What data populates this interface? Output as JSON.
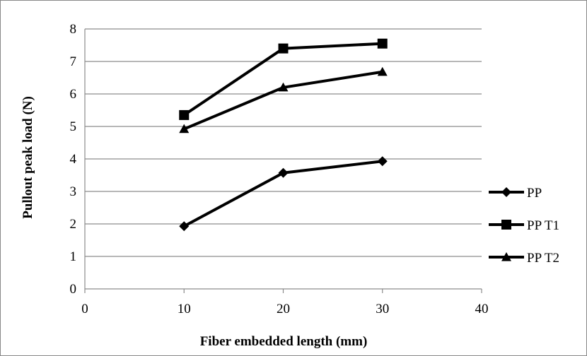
{
  "chart_data": {
    "type": "line",
    "title": "",
    "xlabel": "Fiber embedded length (mm)",
    "ylabel": "Pullout peak load (N)",
    "xlim": [
      0,
      40
    ],
    "ylim": [
      0,
      8
    ],
    "x_ticks": [
      "0",
      "10",
      "20",
      "30",
      "40"
    ],
    "y_ticks": [
      "0",
      "1",
      "2",
      "3",
      "4",
      "5",
      "6",
      "7",
      "8"
    ],
    "grid": "horizontal",
    "legend_position": "right",
    "series": [
      {
        "name": "PP",
        "marker": "diamond",
        "color": "#000000",
        "x": [
          10,
          20,
          30
        ],
        "y": [
          1.93,
          3.57,
          3.93
        ]
      },
      {
        "name": "PP T1",
        "marker": "square",
        "color": "#000000",
        "x": [
          10,
          20,
          30
        ],
        "y": [
          5.35,
          7.4,
          7.55
        ]
      },
      {
        "name": "PP T2",
        "marker": "triangle",
        "color": "#000000",
        "x": [
          10,
          20,
          30
        ],
        "y": [
          4.92,
          6.2,
          6.68
        ]
      }
    ]
  }
}
